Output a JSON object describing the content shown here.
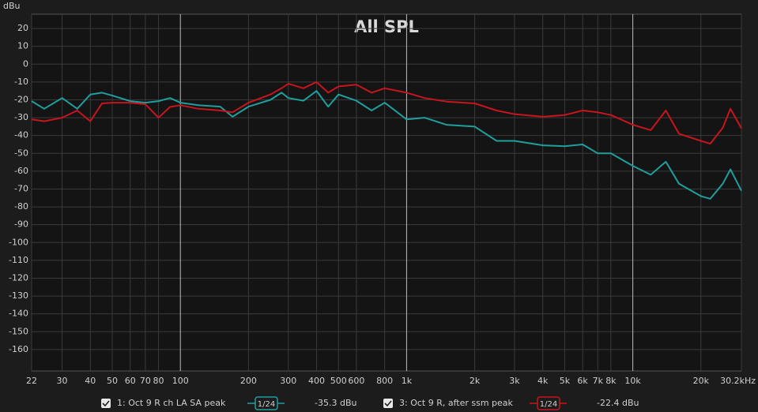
{
  "chart_data": {
    "type": "line",
    "title": "All SPL",
    "y_label": "dBu",
    "x": [
      22,
      25,
      30,
      35,
      40,
      45,
      50,
      60,
      70,
      80,
      90,
      100,
      120,
      150,
      170,
      200,
      250,
      280,
      300,
      350,
      400,
      450,
      500,
      600,
      700,
      800,
      1000,
      1200,
      1500,
      2000,
      2500,
      3000,
      4000,
      5000,
      6000,
      7000,
      8000,
      10000,
      12000,
      14000,
      16000,
      20000,
      22000,
      25000,
      27000,
      30200
    ],
    "series": [
      {
        "name": "1: Oct 9 R ch LA SA peak",
        "color": "#1f9e9e",
        "smoothing": "1/24",
        "readout": "-35.3 dBu",
        "values": [
          -20.7,
          -25,
          -19,
          -25,
          -17,
          -16,
          -17.6,
          -20.7,
          -21.6,
          -20.7,
          -19,
          -21.6,
          -23,
          -23.8,
          -29.5,
          -23.8,
          -20,
          -16,
          -19,
          -20.5,
          -15,
          -23.8,
          -17,
          -20.5,
          -26,
          -21.6,
          -31,
          -30,
          -34,
          -35,
          -43,
          -43,
          -45.5,
          -46,
          -45,
          -50,
          -50,
          -57,
          -62,
          -54.7,
          -67,
          -74,
          -75.5,
          -67,
          -59,
          -71
        ]
      },
      {
        "name": "3: Oct 9 R, after ssm peak",
        "color": "#c8141c",
        "smoothing": "1/24",
        "readout": "-22.4 dBu",
        "values": [
          -31,
          -32,
          -30,
          -26,
          -32,
          -22,
          -21.6,
          -21.6,
          -22.5,
          -30,
          -24,
          -23,
          -25,
          -26,
          -27,
          -21.6,
          -17,
          -13.5,
          -11,
          -13.5,
          -10,
          -16,
          -12.5,
          -11.5,
          -16,
          -13.5,
          -16,
          -19,
          -21,
          -22,
          -26,
          -28,
          -29.5,
          -28.5,
          -26,
          -27,
          -28.5,
          -34,
          -37,
          -26,
          -39,
          -43,
          -44.6,
          -35.6,
          -25,
          -36
        ]
      }
    ],
    "xscale": "log",
    "xlim": [
      22,
      30200
    ],
    "xticks": [
      22,
      30,
      40,
      50,
      60,
      70,
      80,
      100,
      200,
      300,
      400,
      500,
      600,
      800,
      {
        "value": 1000,
        "label": "1k"
      },
      {
        "value": 2000,
        "label": "2k"
      },
      {
        "value": 3000,
        "label": "3k"
      },
      {
        "value": 4000,
        "label": "4k"
      },
      {
        "value": 5000,
        "label": "5k"
      },
      {
        "value": 6000,
        "label": "6k"
      },
      {
        "value": 7000,
        "label": "7k"
      },
      {
        "value": 8000,
        "label": "8k"
      },
      {
        "value": 10000,
        "label": "10k"
      },
      {
        "value": 20000,
        "label": "20k"
      },
      {
        "value": 30200,
        "label": "30.2kHz"
      }
    ],
    "ylim": [
      -172,
      28
    ],
    "yticks": [
      20,
      10,
      0,
      -10,
      -20,
      -30,
      -40,
      -50,
      -60,
      -70,
      -80,
      -90,
      -100,
      -110,
      -120,
      -130,
      -140,
      -150,
      -160
    ],
    "grid": true
  }
}
